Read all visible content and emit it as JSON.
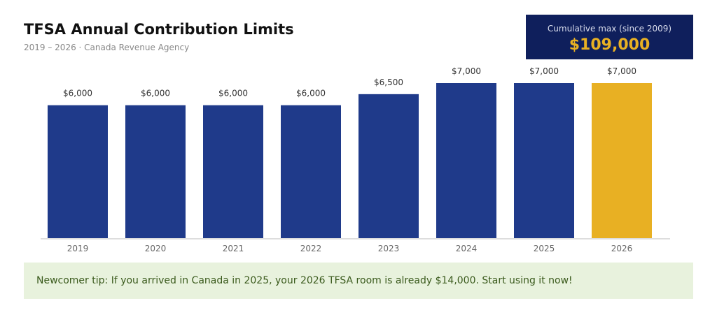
{
  "header": {
    "title": "TFSA Annual Contribution Limits",
    "subtitle": "2019 – 2026 · Canada Revenue Agency"
  },
  "card": {
    "label": "Cumulative max (since 2009)",
    "value": "$109,000"
  },
  "tip": "Newcomer tip: If you arrived in Canada in 2025, your 2026 TFSA room is already $14,000. Start using it now!",
  "colors": {
    "bar": "#1f3a8a",
    "highlight": "#e8b023"
  },
  "chart_data": {
    "type": "bar",
    "title": "TFSA Annual Contribution Limits",
    "categories": [
      "2019",
      "2020",
      "2021",
      "2022",
      "2023",
      "2024",
      "2025",
      "2026"
    ],
    "values": [
      6000,
      6000,
      6000,
      6000,
      6500,
      7000,
      7000,
      7000
    ],
    "labels": [
      "$6,000",
      "$6,000",
      "$6,000",
      "$6,000",
      "$6,500",
      "$7,000",
      "$7,000",
      "$7,000"
    ],
    "highlight_index": 7,
    "xlabel": "",
    "ylabel": "",
    "ylim": [
      0,
      7000
    ],
    "grid": false
  }
}
